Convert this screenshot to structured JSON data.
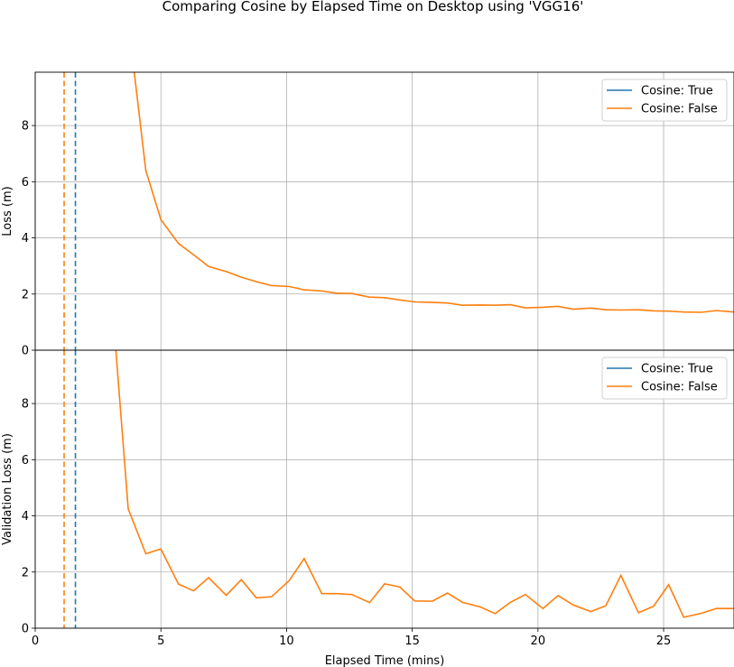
{
  "chart_data": {
    "title": "Comparing Cosine by Elapsed Time on Desktop using 'VGG16'",
    "type": "line",
    "xlabel": "Elapsed Time (mins)",
    "xlim": [
      0,
      27.8
    ],
    "x_ticks": [
      "0",
      "5",
      "10",
      "15",
      "20",
      "25"
    ],
    "x_tick_values": [
      0,
      5,
      10,
      15,
      20,
      25
    ],
    "colors": {
      "true": "#1f77b4",
      "false": "#ff7f0e",
      "grid": "#b0b0b0"
    },
    "legend_position": "upper right",
    "grid": true,
    "panels": [
      {
        "name": "loss",
        "ylabel": "Loss (m)",
        "ylim": [
          0,
          9.9
        ],
        "y_ticks": [
          "0",
          "2",
          "4",
          "6",
          "8"
        ],
        "y_tick_values": [
          0,
          2,
          4,
          6,
          8
        ],
        "vlines": [
          {
            "series": "Cosine: True",
            "x": 1.6
          },
          {
            "series": "Cosine: False",
            "x": 1.15
          }
        ],
        "series": [
          {
            "name": "Cosine: True",
            "x": [],
            "y": []
          },
          {
            "name": "Cosine: False",
            "x": [
              3.9,
              4.4,
              5.0,
              5.7,
              6.3,
              6.9,
              7.6,
              8.2,
              8.8,
              9.4,
              10.1,
              10.7,
              11.4,
              12.0,
              12.6,
              13.3,
              13.9,
              14.5,
              15.1,
              15.8,
              16.4,
              17.0,
              17.7,
              18.3,
              18.9,
              19.5,
              20.2,
              20.8,
              21.4,
              22.1,
              22.7,
              23.3,
              24.0,
              24.6,
              25.2,
              25.8,
              26.5,
              27.1,
              27.8
            ],
            "y": [
              10.2,
              6.4,
              4.65,
              3.8,
              3.4,
              2.98,
              2.8,
              2.6,
              2.44,
              2.3,
              2.27,
              2.15,
              2.11,
              2.03,
              2.02,
              1.89,
              1.87,
              1.79,
              1.72,
              1.7,
              1.68,
              1.6,
              1.61,
              1.6,
              1.62,
              1.51,
              1.53,
              1.56,
              1.46,
              1.5,
              1.44,
              1.43,
              1.44,
              1.4,
              1.39,
              1.36,
              1.35,
              1.41,
              1.36
            ]
          }
        ]
      },
      {
        "name": "validation-loss",
        "ylabel": "Validation Loss (m)",
        "ylim": [
          0,
          9.9
        ],
        "y_ticks": [
          "0",
          "2",
          "4",
          "6",
          "8"
        ],
        "y_tick_values": [
          0,
          2,
          4,
          6,
          8
        ],
        "vlines": [
          {
            "series": "Cosine: True",
            "x": 1.6
          },
          {
            "series": "Cosine: False",
            "x": 1.15
          }
        ],
        "series": [
          {
            "name": "Cosine: True",
            "x": [],
            "y": []
          },
          {
            "name": "Cosine: False",
            "x": [
              3.2,
              3.7,
              4.4,
              5.0,
              5.7,
              6.3,
              6.9,
              7.6,
              8.2,
              8.8,
              9.4,
              10.1,
              10.7,
              11.4,
              12.0,
              12.6,
              13.3,
              13.9,
              14.5,
              15.1,
              15.8,
              16.4,
              17.0,
              17.7,
              18.3,
              18.9,
              19.5,
              20.2,
              20.8,
              21.4,
              22.1,
              22.7,
              23.3,
              24.0,
              24.6,
              25.2,
              25.8,
              26.5,
              27.1,
              27.8
            ],
            "y": [
              10.0,
              4.25,
              2.65,
              2.82,
              1.57,
              1.33,
              1.8,
              1.17,
              1.73,
              1.08,
              1.12,
              1.69,
              2.48,
              1.23,
              1.23,
              1.2,
              0.91,
              1.58,
              1.47,
              0.97,
              0.96,
              1.25,
              0.92,
              0.76,
              0.52,
              0.92,
              1.2,
              0.7,
              1.16,
              0.83,
              0.59,
              0.8,
              1.88,
              0.55,
              0.78,
              1.55,
              0.39,
              0.53,
              0.7,
              0.7
            ]
          }
        ]
      }
    ]
  }
}
